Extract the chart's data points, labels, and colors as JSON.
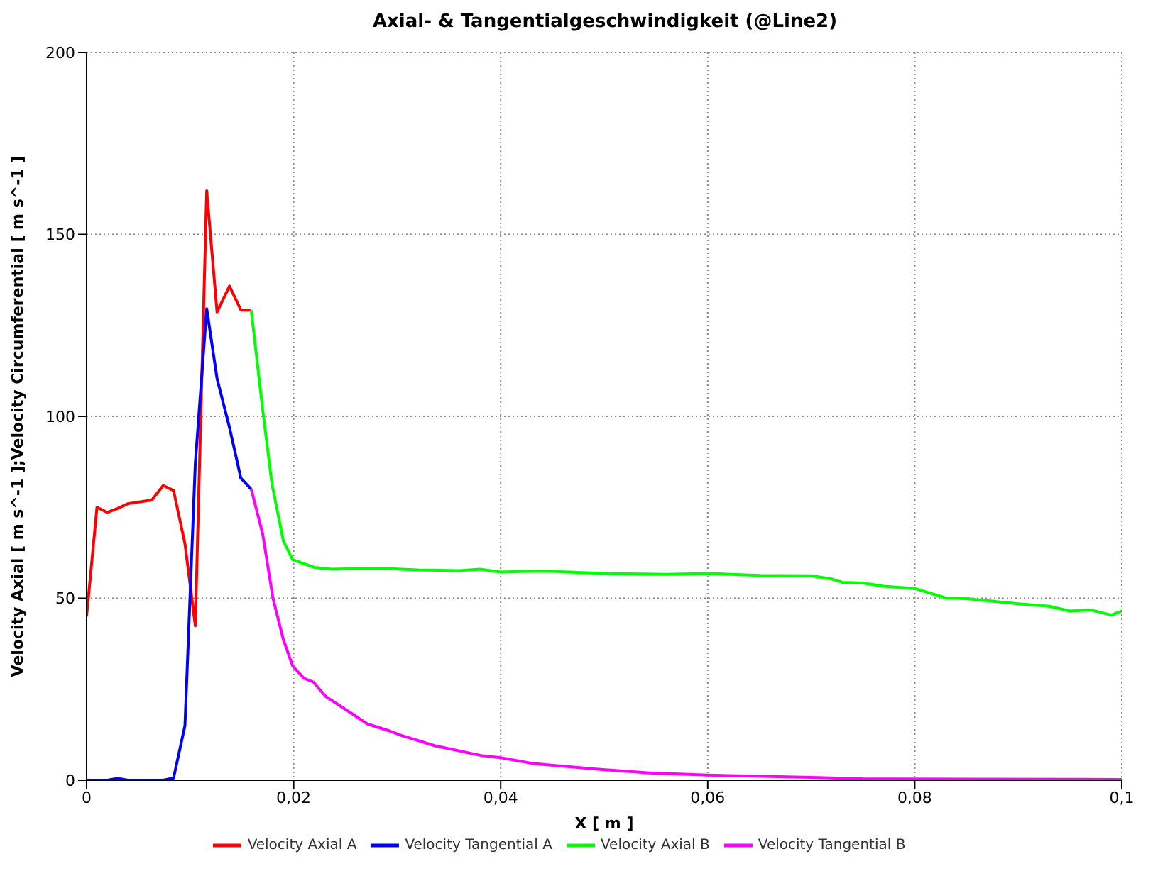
{
  "chart_data": {
    "type": "line",
    "title": "Axial- & Tangentialgeschwindigkeit (@Line2)",
    "xlabel": "X [ m ]",
    "ylabel": "Velocity Axial [ m s^-1 ];Velocity Circumferential [ m s^-1 ]",
    "xlim": [
      0,
      0.1
    ],
    "xticks": [
      0,
      {
        "value": 0.02,
        "label": "0,02"
      },
      {
        "value": 0.04,
        "label": "0,04"
      },
      {
        "value": 0.06,
        "label": "0,06"
      },
      {
        "value": 0.08,
        "label": "0,08"
      },
      {
        "value": 0.1,
        "label": "0,1"
      }
    ],
    "ylim": [
      0,
      200
    ],
    "yticks": [
      0,
      50,
      100,
      150,
      200
    ],
    "grid": true,
    "legend": "bottom",
    "marker": "none",
    "line_style": "solid",
    "series": [
      {
        "name": "Velocity Axial A",
        "color": "#ff0000",
        "x": [
          0,
          0.001,
          0.002,
          0.003,
          0.004,
          0.0063,
          0.0074,
          0.0084,
          0.0095,
          0.0105,
          0.0116,
          0.0126,
          0.0138,
          0.0149,
          0.0159
        ],
        "values": [
          45,
          75,
          73.6,
          74.7,
          76,
          77,
          81,
          79.6,
          65,
          42.4,
          162,
          128.7,
          135.8,
          129.2,
          129.2
        ]
      },
      {
        "name": "Velocity Tangential A",
        "color": "#0000ff",
        "x": [
          0,
          0.001,
          0.002,
          0.003,
          0.004,
          0.0063,
          0.0074,
          0.0084,
          0.0095,
          0.0105,
          0.0116,
          0.0126,
          0.0138,
          0.0149,
          0.0159
        ],
        "values": [
          0,
          0,
          0,
          0.5,
          0,
          0,
          0,
          0.6,
          15,
          87,
          129.6,
          110.4,
          97,
          83,
          80
        ]
      },
      {
        "name": "Velocity Axial B",
        "color": "#00ff00",
        "x": [
          0.0159,
          0.017,
          0.0179,
          0.019,
          0.0199,
          0.022,
          0.0237,
          0.028,
          0.032,
          0.036,
          0.038,
          0.04,
          0.044,
          0.05,
          0.056,
          0.06,
          0.065,
          0.07,
          0.072,
          0.073,
          0.075,
          0.077,
          0.08,
          0.083,
          0.085,
          0.09,
          0.093,
          0.095,
          0.097,
          0.099,
          0.1
        ],
        "values": [
          129.2,
          102,
          81.5,
          65.8,
          60.6,
          58.5,
          58,
          58.3,
          57.8,
          57.6,
          58,
          57.2,
          57.5,
          56.8,
          56.6,
          56.8,
          56.3,
          56.2,
          55.3,
          54.4,
          54.2,
          53.3,
          52.7,
          50.1,
          49.9,
          48.5,
          47.8,
          46.5,
          46.8,
          45.4,
          46.5
        ]
      },
      {
        "name": "Velocity Tangential B",
        "color": "#ff00ff",
        "x": [
          0.0159,
          0.017,
          0.018,
          0.019,
          0.0199,
          0.021,
          0.0219,
          0.0231,
          0.0251,
          0.0271,
          0.0292,
          0.0303,
          0.0336,
          0.0381,
          0.04,
          0.0431,
          0.0494,
          0.0544,
          0.06,
          0.07,
          0.075,
          0.085,
          0.1
        ],
        "values": [
          80,
          67.8,
          50,
          38.7,
          31.4,
          28,
          27,
          23,
          19.3,
          15.5,
          13.6,
          12.4,
          9.5,
          6.8,
          6.2,
          4.6,
          3,
          2,
          1.4,
          0.8,
          0.4,
          0.3,
          0.2
        ]
      }
    ]
  }
}
